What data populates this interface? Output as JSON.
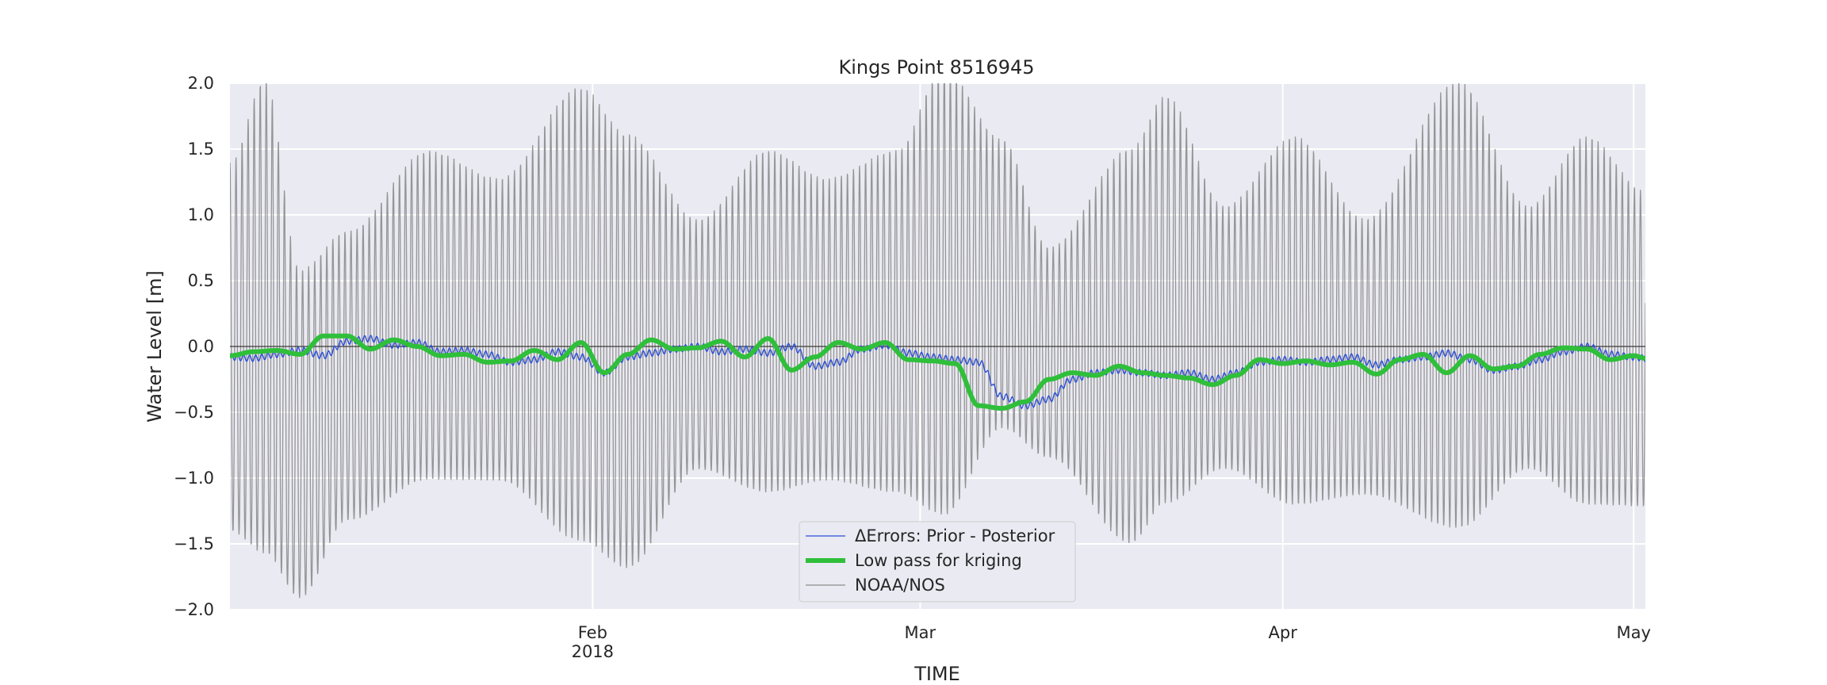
{
  "chart_data": {
    "type": "line",
    "title": "Kings Point  8516945",
    "xlabel": "TIME",
    "ylabel": "Water Level [m]",
    "ylim": [
      -2.0,
      2.0
    ],
    "xlim": [
      "2018-01-01",
      "2018-05-02"
    ],
    "yticks": [
      -2.0,
      -1.5,
      -1.0,
      -0.5,
      0.0,
      0.5,
      1.0,
      1.5,
      2.0
    ],
    "ytick_labels": [
      "−2.0",
      "−1.5",
      "−1.0",
      "−0.5",
      "0.0",
      "0.5",
      "1.0",
      "1.5",
      "2.0"
    ],
    "xticks": [
      {
        "date": "2018-02-01",
        "label": "Feb",
        "sublabel": "2018"
      },
      {
        "date": "2018-03-01",
        "label": "Mar",
        "sublabel": ""
      },
      {
        "date": "2018-04-01",
        "label": "Apr",
        "sublabel": ""
      },
      {
        "date": "2018-05-01",
        "label": "May",
        "sublabel": ""
      }
    ],
    "grid": true,
    "legend_position": "bottom-center",
    "zero_line": true,
    "series": [
      {
        "name": "ΔErrors: Prior - Posterior",
        "color": "#2b4fd8",
        "style": "thin",
        "dates": [
          "2018-01-01",
          "2018-01-03",
          "2018-01-05",
          "2018-01-07",
          "2018-01-09",
          "2018-01-11",
          "2018-01-13",
          "2018-01-15",
          "2018-01-17",
          "2018-01-19",
          "2018-01-21",
          "2018-01-23",
          "2018-01-25",
          "2018-01-27",
          "2018-01-29",
          "2018-01-31",
          "2018-02-02",
          "2018-02-04",
          "2018-02-06",
          "2018-02-08",
          "2018-02-10",
          "2018-02-12",
          "2018-02-14",
          "2018-02-16",
          "2018-02-18",
          "2018-02-20",
          "2018-02-22",
          "2018-02-24",
          "2018-02-26",
          "2018-02-28",
          "2018-03-02",
          "2018-03-04",
          "2018-03-06",
          "2018-03-08",
          "2018-03-10",
          "2018-03-12",
          "2018-03-14",
          "2018-03-16",
          "2018-03-18",
          "2018-03-20",
          "2018-03-22",
          "2018-03-24",
          "2018-03-26",
          "2018-03-28",
          "2018-03-30",
          "2018-04-01",
          "2018-04-03",
          "2018-04-05",
          "2018-04-07",
          "2018-04-09",
          "2018-04-11",
          "2018-04-13",
          "2018-04-15",
          "2018-04-17",
          "2018-04-19",
          "2018-04-21",
          "2018-04-23",
          "2018-04-25",
          "2018-04-27",
          "2018-04-29",
          "2018-05-01",
          "2018-05-02"
        ],
        "values": [
          -0.08,
          -0.09,
          -0.06,
          -0.03,
          -0.07,
          0.04,
          0.06,
          0.01,
          0.03,
          -0.04,
          -0.03,
          -0.06,
          -0.12,
          -0.1,
          -0.04,
          -0.08,
          -0.2,
          -0.08,
          -0.05,
          -0.02,
          0.0,
          -0.04,
          -0.02,
          -0.05,
          0.0,
          -0.15,
          -0.12,
          -0.02,
          0.01,
          -0.05,
          -0.08,
          -0.1,
          -0.12,
          -0.38,
          -0.45,
          -0.4,
          -0.25,
          -0.2,
          -0.18,
          -0.2,
          -0.22,
          -0.2,
          -0.25,
          -0.2,
          -0.12,
          -0.1,
          -0.12,
          -0.1,
          -0.08,
          -0.14,
          -0.1,
          -0.08,
          -0.05,
          -0.1,
          -0.18,
          -0.15,
          -0.1,
          -0.04,
          0.0,
          -0.06,
          -0.08,
          -0.09
        ]
      },
      {
        "name": "Low pass for kriging",
        "color": "#2fbf3a",
        "style": "thick",
        "dates": [
          "2018-01-01",
          "2018-01-03",
          "2018-01-05",
          "2018-01-07",
          "2018-01-09",
          "2018-01-11",
          "2018-01-13",
          "2018-01-15",
          "2018-01-17",
          "2018-01-19",
          "2018-01-21",
          "2018-01-23",
          "2018-01-25",
          "2018-01-27",
          "2018-01-29",
          "2018-01-31",
          "2018-02-02",
          "2018-02-04",
          "2018-02-06",
          "2018-02-08",
          "2018-02-10",
          "2018-02-12",
          "2018-02-14",
          "2018-02-16",
          "2018-02-18",
          "2018-02-20",
          "2018-02-22",
          "2018-02-24",
          "2018-02-26",
          "2018-02-28",
          "2018-03-02",
          "2018-03-04",
          "2018-03-06",
          "2018-03-08",
          "2018-03-10",
          "2018-03-12",
          "2018-03-14",
          "2018-03-16",
          "2018-03-18",
          "2018-03-20",
          "2018-03-22",
          "2018-03-24",
          "2018-03-26",
          "2018-03-28",
          "2018-03-30",
          "2018-04-01",
          "2018-04-03",
          "2018-04-05",
          "2018-04-07",
          "2018-04-09",
          "2018-04-11",
          "2018-04-13",
          "2018-04-15",
          "2018-04-17",
          "2018-04-19",
          "2018-04-21",
          "2018-04-23",
          "2018-04-25",
          "2018-04-27",
          "2018-04-29",
          "2018-05-01",
          "2018-05-02"
        ],
        "values": [
          -0.07,
          -0.04,
          -0.03,
          -0.06,
          0.08,
          0.08,
          -0.02,
          0.05,
          0.0,
          -0.07,
          -0.06,
          -0.12,
          -0.11,
          -0.03,
          -0.1,
          0.03,
          -0.2,
          -0.06,
          0.05,
          -0.02,
          -0.01,
          0.04,
          -0.08,
          0.06,
          -0.18,
          -0.08,
          0.03,
          -0.02,
          0.03,
          -0.1,
          -0.11,
          -0.13,
          -0.45,
          -0.47,
          -0.42,
          -0.25,
          -0.2,
          -0.22,
          -0.15,
          -0.2,
          -0.22,
          -0.24,
          -0.29,
          -0.22,
          -0.1,
          -0.13,
          -0.11,
          -0.14,
          -0.12,
          -0.21,
          -0.1,
          -0.06,
          -0.2,
          -0.07,
          -0.17,
          -0.15,
          -0.06,
          -0.01,
          -0.02,
          -0.1,
          -0.07,
          -0.09
        ]
      },
      {
        "name": "NOAA/NOS",
        "color": "#8c8c8c",
        "style": "thin",
        "amplitude_peaks_m": [
          {
            "date": "2018-01-01",
            "high": 1.3,
            "low": -1.5
          },
          {
            "date": "2018-01-04",
            "high": 1.9,
            "low": -1.7
          },
          {
            "date": "2018-01-07",
            "high": 0.5,
            "low": -2.0
          },
          {
            "date": "2018-01-11",
            "high": 0.8,
            "low": -1.4
          },
          {
            "date": "2018-01-18",
            "high": 1.4,
            "low": -1.1
          },
          {
            "date": "2018-01-24",
            "high": 1.2,
            "low": -1.1
          },
          {
            "date": "2018-01-31",
            "high": 1.85,
            "low": -1.6
          },
          {
            "date": "2018-02-04",
            "high": 1.5,
            "low": -1.8
          },
          {
            "date": "2018-02-10",
            "high": 0.9,
            "low": -1.0
          },
          {
            "date": "2018-02-16",
            "high": 1.4,
            "low": -1.2
          },
          {
            "date": "2018-02-21",
            "high": 1.2,
            "low": -1.1
          },
          {
            "date": "2018-02-27",
            "high": 1.4,
            "low": -1.2
          },
          {
            "date": "2018-03-03",
            "high": 2.0,
            "low": -1.4
          },
          {
            "date": "2018-03-08",
            "high": 1.5,
            "low": -0.7
          },
          {
            "date": "2018-03-12",
            "high": 0.7,
            "low": -0.9
          },
          {
            "date": "2018-03-19",
            "high": 1.4,
            "low": -1.6
          },
          {
            "date": "2018-03-22",
            "high": 1.8,
            "low": -1.3
          },
          {
            "date": "2018-03-27",
            "high": 1.0,
            "low": -1.0
          },
          {
            "date": "2018-04-02",
            "high": 1.5,
            "low": -1.3
          },
          {
            "date": "2018-04-08",
            "high": 0.9,
            "low": -1.2
          },
          {
            "date": "2018-04-16",
            "high": 1.9,
            "low": -1.5
          },
          {
            "date": "2018-04-22",
            "high": 1.0,
            "low": -1.0
          },
          {
            "date": "2018-04-27",
            "high": 1.5,
            "low": -1.3
          },
          {
            "date": "2018-05-02",
            "high": 1.1,
            "low": -1.3
          }
        ]
      }
    ]
  }
}
